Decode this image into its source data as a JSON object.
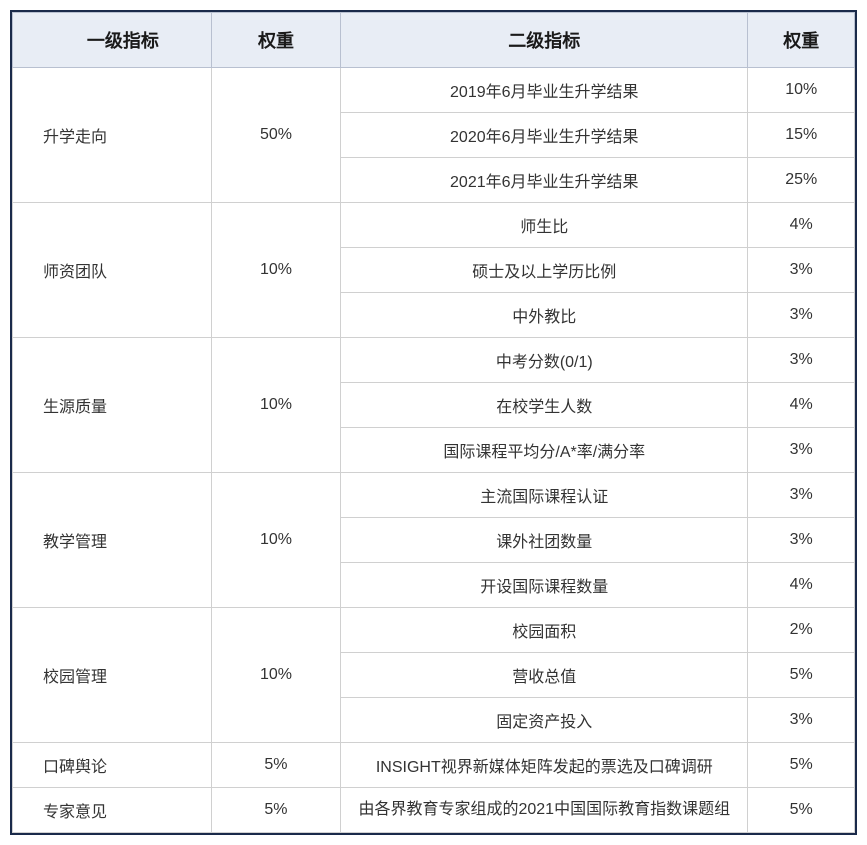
{
  "headers": {
    "primary": "一级指标",
    "weight1": "权重",
    "secondary": "二级指标",
    "weight2": "权重"
  },
  "rows": [
    {
      "primary": "升学走向",
      "weight": "50%",
      "subs": [
        {
          "label": "2019年6月毕业生升学结果",
          "weight": "10%"
        },
        {
          "label": "2020年6月毕业生升学结果",
          "weight": "15%"
        },
        {
          "label": "2021年6月毕业生升学结果",
          "weight": "25%"
        }
      ]
    },
    {
      "primary": "师资团队",
      "weight": "10%",
      "subs": [
        {
          "label": "师生比",
          "weight": "4%"
        },
        {
          "label": "硕士及以上学历比例",
          "weight": "3%"
        },
        {
          "label": "中外教比",
          "weight": "3%"
        }
      ]
    },
    {
      "primary": "生源质量",
      "weight": "10%",
      "subs": [
        {
          "label": "中考分数(0/1)",
          "weight": "3%"
        },
        {
          "label": "在校学生人数",
          "weight": "4%"
        },
        {
          "label": "国际课程平均分/A*率/满分率",
          "weight": "3%"
        }
      ]
    },
    {
      "primary": "教学管理",
      "weight": "10%",
      "subs": [
        {
          "label": "主流国际课程认证",
          "weight": "3%"
        },
        {
          "label": "课外社团数量",
          "weight": "3%"
        },
        {
          "label": "开设国际课程数量",
          "weight": "4%"
        }
      ]
    },
    {
      "primary": "校园管理",
      "weight": "10%",
      "subs": [
        {
          "label": "校园面积",
          "weight": "2%"
        },
        {
          "label": "营收总值",
          "weight": "5%"
        },
        {
          "label": "固定资产投入",
          "weight": "3%"
        }
      ]
    },
    {
      "primary": "口碑舆论",
      "weight": "5%",
      "subs": [
        {
          "label": "INSIGHT视界新媒体矩阵发起的票选及口碑调研",
          "weight": "5%"
        }
      ]
    },
    {
      "primary": "专家意见",
      "weight": "5%",
      "subs": [
        {
          "label": "由各界教育专家组成的2021中国国际教育指数课题组",
          "weight": "5%",
          "multiline": true
        }
      ]
    }
  ],
  "styling": {
    "header_bg": "#e8edf5",
    "border_outer": "#1a2a4a",
    "border_inner": "#d0d0d0",
    "header_border": "#b8c0d0",
    "text_color": "#333333",
    "header_text": "#1a1a1a",
    "header_fontsize": 18,
    "cell_fontsize": 16,
    "col_widths": {
      "primary": 200,
      "weight1": 130,
      "secondary": 410,
      "weight2": 107
    }
  }
}
